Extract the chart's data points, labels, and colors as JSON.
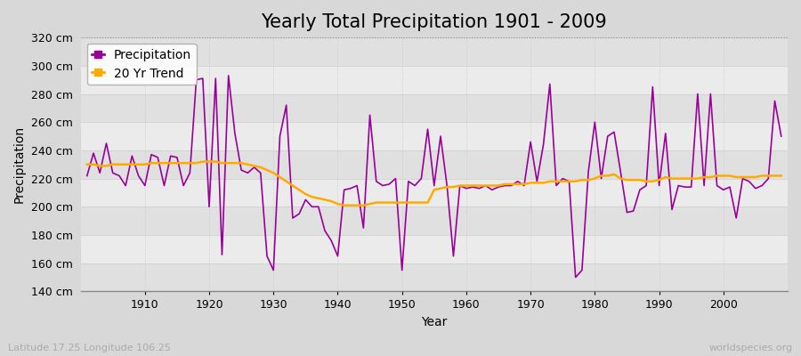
{
  "title": "Yearly Total Precipitation 1901 - 2009",
  "xlabel": "Year",
  "ylabel": "Precipitation",
  "years": [
    1901,
    1902,
    1903,
    1904,
    1905,
    1906,
    1907,
    1908,
    1909,
    1910,
    1911,
    1912,
    1913,
    1914,
    1915,
    1916,
    1917,
    1918,
    1919,
    1920,
    1921,
    1922,
    1923,
    1924,
    1925,
    1926,
    1927,
    1928,
    1929,
    1930,
    1931,
    1932,
    1933,
    1934,
    1935,
    1936,
    1937,
    1938,
    1939,
    1940,
    1941,
    1942,
    1943,
    1944,
    1945,
    1946,
    1947,
    1948,
    1949,
    1950,
    1951,
    1952,
    1953,
    1954,
    1955,
    1956,
    1957,
    1958,
    1959,
    1960,
    1961,
    1962,
    1963,
    1964,
    1965,
    1966,
    1967,
    1968,
    1969,
    1970,
    1971,
    1972,
    1973,
    1974,
    1975,
    1976,
    1977,
    1978,
    1979,
    1980,
    1981,
    1982,
    1983,
    1984,
    1985,
    1986,
    1987,
    1988,
    1989,
    1990,
    1991,
    1992,
    1993,
    1994,
    1995,
    1996,
    1997,
    1998,
    1999,
    2000,
    2001,
    2002,
    2003,
    2004,
    2005,
    2006,
    2007,
    2008,
    2009
  ],
  "precipitation": [
    222,
    238,
    224,
    245,
    224,
    222,
    215,
    236,
    222,
    215,
    237,
    235,
    215,
    236,
    235,
    215,
    224,
    290,
    291,
    200,
    291,
    166,
    293,
    252,
    226,
    224,
    228,
    224,
    165,
    155,
    250,
    272,
    192,
    195,
    205,
    200,
    200,
    183,
    176,
    165,
    212,
    213,
    215,
    185,
    265,
    218,
    215,
    216,
    220,
    155,
    218,
    215,
    220,
    255,
    215,
    250,
    215,
    165,
    215,
    213,
    214,
    213,
    215,
    212,
    214,
    215,
    215,
    218,
    215,
    246,
    218,
    244,
    287,
    215,
    220,
    218,
    150,
    155,
    225,
    260,
    220,
    250,
    253,
    225,
    196,
    197,
    212,
    215,
    285,
    215,
    252,
    198,
    215,
    214,
    214,
    280,
    215,
    280,
    215,
    212,
    214,
    192,
    220,
    218,
    213,
    215,
    220,
    275,
    250
  ],
  "trend": [
    230,
    230,
    229,
    229,
    230,
    230,
    230,
    230,
    230,
    230,
    231,
    231,
    231,
    231,
    231,
    231,
    231,
    231,
    232,
    232,
    232,
    231,
    231,
    231,
    231,
    230,
    229,
    228,
    226,
    224,
    221,
    218,
    215,
    212,
    209,
    207,
    206,
    205,
    204,
    202,
    201,
    201,
    201,
    201,
    202,
    203,
    203,
    203,
    203,
    203,
    203,
    203,
    203,
    203,
    212,
    213,
    214,
    214,
    215,
    215,
    215,
    215,
    215,
    215,
    215,
    216,
    216,
    216,
    216,
    217,
    217,
    217,
    218,
    218,
    218,
    218,
    218,
    219,
    219,
    220,
    222,
    222,
    223,
    220,
    219,
    219,
    219,
    218,
    218,
    219,
    221,
    220,
    220,
    220,
    220,
    220,
    221,
    221,
    222,
    222,
    222,
    221,
    221,
    221,
    221,
    222,
    222,
    222,
    222
  ],
  "ylim": [
    140,
    320
  ],
  "yticks": [
    140,
    160,
    180,
    200,
    220,
    240,
    260,
    280,
    300,
    320
  ],
  "fig_bg_color": "#d8d8d8",
  "plot_bg_color": "#e8e8e8",
  "plot_bg_color2": "#d0d0d8",
  "precip_color": "#990099",
  "trend_color": "#ffaa00",
  "vgrid_color": "#bbbbbb",
  "hgrid_color": "#cccccc",
  "title_fontsize": 15,
  "label_fontsize": 10,
  "tick_fontsize": 9,
  "footer_left": "Latitude 17.25 Longitude 106.25",
  "footer_right": "worldspecies.org"
}
